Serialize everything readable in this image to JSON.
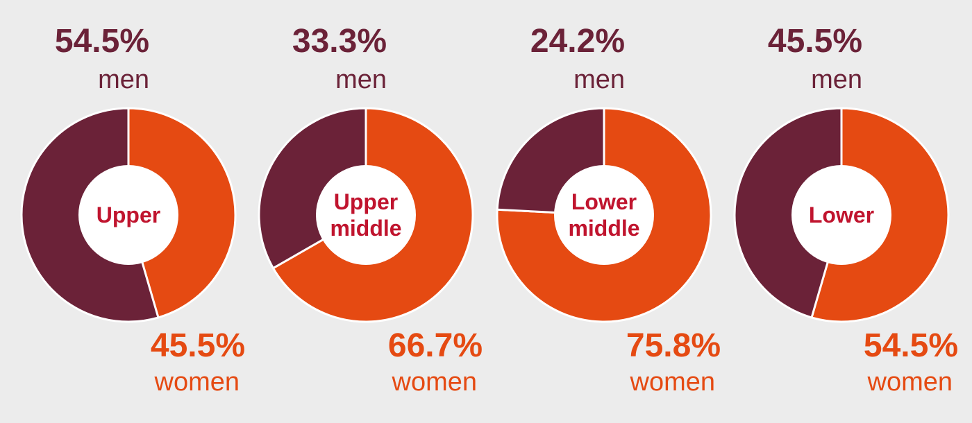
{
  "colors": {
    "men": "#6b2238",
    "women": "#e54a12",
    "background": "#ececec",
    "center_text": "#c0142e"
  },
  "chart_data": [
    {
      "type": "pie",
      "center_label": [
        "Upper"
      ],
      "series": [
        {
          "name": "men",
          "value": 54.5,
          "label_pct": "54.5%",
          "label": "men"
        },
        {
          "name": "women",
          "value": 45.5,
          "label_pct": "45.5%",
          "label": "women"
        }
      ]
    },
    {
      "type": "pie",
      "center_label": [
        "Upper",
        "middle"
      ],
      "series": [
        {
          "name": "men",
          "value": 33.3,
          "label_pct": "33.3%",
          "label": "men"
        },
        {
          "name": "women",
          "value": 66.7,
          "label_pct": "66.7%",
          "label": "women"
        }
      ]
    },
    {
      "type": "pie",
      "center_label": [
        "Lower",
        "middle"
      ],
      "series": [
        {
          "name": "men",
          "value": 24.2,
          "label_pct": "24.2%",
          "label": "men"
        },
        {
          "name": "women",
          "value": 75.8,
          "label_pct": "75.8%",
          "label": "women"
        }
      ]
    },
    {
      "type": "pie",
      "center_label": [
        "Lower"
      ],
      "series": [
        {
          "name": "men",
          "value": 45.5,
          "label_pct": "45.5%",
          "label": "men"
        },
        {
          "name": "women",
          "value": 54.5,
          "label_pct": "54.5%",
          "label": "women"
        }
      ]
    }
  ]
}
